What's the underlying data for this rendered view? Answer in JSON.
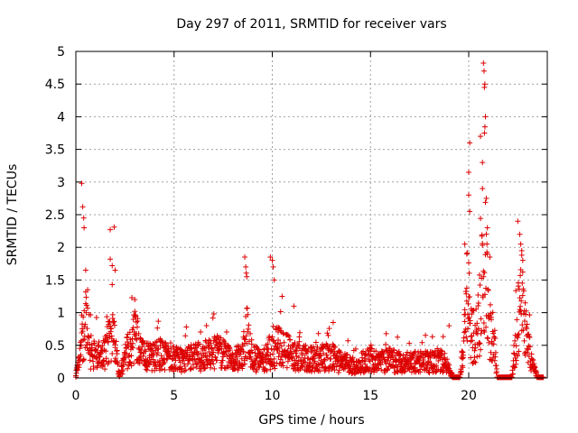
{
  "chart_data": {
    "type": "scatter",
    "title": "Day 297 of 2011, SRMTID for receiver vars",
    "xlabel": "GPS time / hours",
    "ylabel": "SRMTID / TECUs",
    "xlim": [
      0,
      24
    ],
    "ylim": [
      0,
      5
    ],
    "xticks": [
      "0",
      "5",
      "10",
      "15",
      "20"
    ],
    "yticks": [
      "0",
      "0.5",
      "1",
      "1.5",
      "2",
      "2.5",
      "3",
      "3.5",
      "4",
      "4.5",
      "5"
    ],
    "grid": true,
    "marker": "plus",
    "color": "#dd0000",
    "profile": [
      [
        0.0,
        0.05
      ],
      [
        0.2,
        0.35
      ],
      [
        0.35,
        0.9
      ],
      [
        0.5,
        1.1
      ],
      [
        0.7,
        0.5
      ],
      [
        1.0,
        0.45
      ],
      [
        1.3,
        0.4
      ],
      [
        1.6,
        0.6
      ],
      [
        1.8,
        0.95
      ],
      [
        2.0,
        0.6
      ],
      [
        2.2,
        0.05
      ],
      [
        2.45,
        0.3
      ],
      [
        2.8,
        0.7
      ],
      [
        3.0,
        0.9
      ],
      [
        3.3,
        0.45
      ],
      [
        3.8,
        0.4
      ],
      [
        4.3,
        0.45
      ],
      [
        4.8,
        0.4
      ],
      [
        5.5,
        0.35
      ],
      [
        6.0,
        0.4
      ],
      [
        6.5,
        0.42
      ],
      [
        7.0,
        0.5
      ],
      [
        7.5,
        0.45
      ],
      [
        8.0,
        0.3
      ],
      [
        8.5,
        0.45
      ],
      [
        8.7,
        0.85
      ],
      [
        9.0,
        0.4
      ],
      [
        9.5,
        0.3
      ],
      [
        9.9,
        0.5
      ],
      [
        10.2,
        0.6
      ],
      [
        10.5,
        0.55
      ],
      [
        11.0,
        0.45
      ],
      [
        11.5,
        0.4
      ],
      [
        12.0,
        0.35
      ],
      [
        12.5,
        0.4
      ],
      [
        13.0,
        0.4
      ],
      [
        13.5,
        0.3
      ],
      [
        14.0,
        0.25
      ],
      [
        14.4,
        0.2
      ],
      [
        14.55,
        0.3
      ],
      [
        15.0,
        0.35
      ],
      [
        15.5,
        0.3
      ],
      [
        16.0,
        0.35
      ],
      [
        16.5,
        0.3
      ],
      [
        17.0,
        0.3
      ],
      [
        17.5,
        0.32
      ],
      [
        18.0,
        0.3
      ],
      [
        18.6,
        0.35
      ],
      [
        18.9,
        0.25
      ],
      [
        19.2,
        0.02
      ],
      [
        19.55,
        0.02
      ],
      [
        19.8,
        0.9
      ],
      [
        20.0,
        1.4
      ],
      [
        20.2,
        0.75
      ],
      [
        20.5,
        1.0
      ],
      [
        20.7,
        1.8
      ],
      [
        20.85,
        2.1
      ],
      [
        21.0,
        1.2
      ],
      [
        21.3,
        0.7
      ],
      [
        21.45,
        0.02
      ],
      [
        22.2,
        0.02
      ],
      [
        22.5,
        1.1
      ],
      [
        22.7,
        1.4
      ],
      [
        22.95,
        0.7
      ],
      [
        23.2,
        0.3
      ],
      [
        23.5,
        0.02
      ],
      [
        24.0,
        0.02
      ]
    ],
    "spikes": [
      [
        0.3,
        2.98
      ],
      [
        0.35,
        2.62
      ],
      [
        0.4,
        2.45
      ],
      [
        0.42,
        2.3
      ],
      [
        0.5,
        1.65
      ],
      [
        0.6,
        1.35
      ],
      [
        1.75,
        2.27
      ],
      [
        1.95,
        2.31
      ],
      [
        1.85,
        1.72
      ],
      [
        2.0,
        1.65
      ],
      [
        3.0,
        1.2
      ],
      [
        8.6,
        1.85
      ],
      [
        8.65,
        1.7
      ],
      [
        8.7,
        1.55
      ],
      [
        9.9,
        1.85
      ],
      [
        10.0,
        1.8
      ],
      [
        10.05,
        1.7
      ],
      [
        10.1,
        1.5
      ],
      [
        10.5,
        1.25
      ],
      [
        11.1,
        1.1
      ],
      [
        13.1,
        0.85
      ],
      [
        19.0,
        0.8
      ],
      [
        19.8,
        2.05
      ],
      [
        19.9,
        1.9
      ],
      [
        20.0,
        2.8
      ],
      [
        20.05,
        2.55
      ],
      [
        20.0,
        3.15
      ],
      [
        20.05,
        3.6
      ],
      [
        20.6,
        3.7
      ],
      [
        20.7,
        3.3
      ],
      [
        20.7,
        2.9
      ],
      [
        20.75,
        4.82
      ],
      [
        20.78,
        4.7
      ],
      [
        20.8,
        4.45
      ],
      [
        20.82,
        4.5
      ],
      [
        20.85,
        4.0
      ],
      [
        20.8,
        3.75
      ],
      [
        20.9,
        2.75
      ],
      [
        20.95,
        2.3
      ],
      [
        22.5,
        2.4
      ],
      [
        22.6,
        2.2
      ],
      [
        22.65,
        2.05
      ],
      [
        22.7,
        1.95
      ],
      [
        22.75,
        1.8
      ]
    ]
  }
}
